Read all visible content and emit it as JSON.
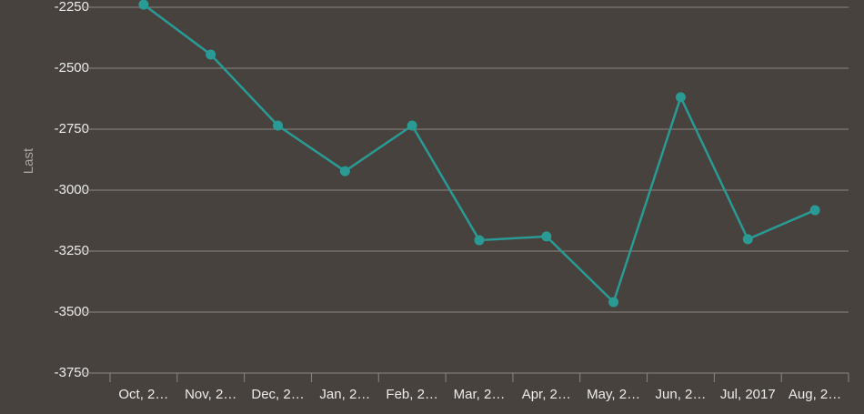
{
  "chart_data": {
    "type": "line",
    "y_label": "Last",
    "categories": [
      "Oct, 2…",
      "Nov, 2…",
      "Dec, 2…",
      "Jan, 2…",
      "Feb, 2…",
      "Mar, 2…",
      "Apr, 2…",
      "May, 2…",
      "Jun, 2…",
      "Jul, 2017",
      "Aug, 2…"
    ],
    "series": [
      {
        "name": "Last",
        "color": "#2a9a94",
        "values": [
          -2239,
          -2444,
          -2735,
          -2922,
          -2735,
          -3205,
          -3190,
          -3459,
          -2619,
          -3201,
          -3082
        ]
      }
    ],
    "ylim": [
      -3750,
      -2250
    ],
    "yticks": [
      -3750,
      -3500,
      -3250,
      -3000,
      -2750,
      -2500,
      -2250
    ],
    "grid": true
  }
}
